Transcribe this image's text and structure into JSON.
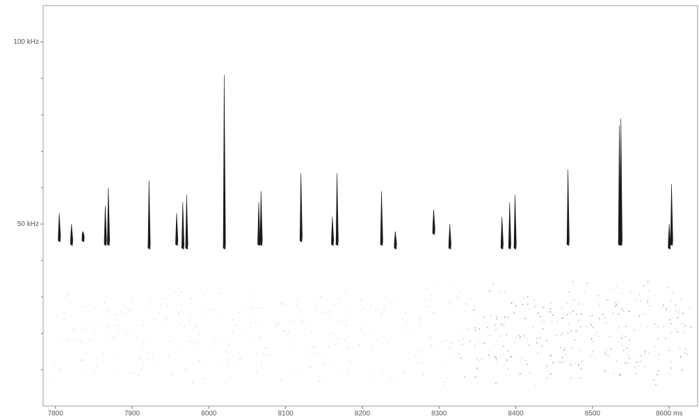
{
  "chart_data": {
    "type": "spectrogram",
    "xlim": [
      7784,
      8637
    ],
    "xticks": [
      7800,
      7900,
      8000,
      8100,
      8200,
      8300,
      8400,
      8500,
      {
        "value": 8600,
        "label": "8600 ms"
      }
    ],
    "ylim": [
      0,
      110
    ],
    "yticks": [
      {
        "value": 50,
        "label": "50 kHz"
      },
      {
        "value": 100,
        "label": "100 kHz"
      }
    ],
    "minor_yticks": [
      10,
      20,
      30,
      40,
      60,
      70,
      80,
      90
    ],
    "color": "#1a1a1a",
    "calls": {
      "x": [
        7805,
        7821,
        7836,
        7865,
        7869,
        7922,
        7958,
        7966,
        7971,
        8020,
        8065,
        8068,
        8120,
        8161,
        8167,
        8225,
        8243,
        8293,
        8314,
        8382,
        8392,
        8399,
        8468,
        8535,
        8537,
        8600,
        8603
      ],
      "low": [
        45,
        44,
        45,
        44,
        44,
        43,
        44,
        43,
        43,
        43,
        44,
        44,
        45,
        44,
        44,
        44,
        43,
        47,
        43,
        43,
        43,
        43,
        44,
        44,
        44,
        43,
        44
      ],
      "high": [
        53,
        50,
        48,
        55,
        60,
        62,
        53,
        56,
        58,
        91,
        56,
        59,
        64,
        52,
        64,
        59,
        48,
        54,
        50,
        52,
        56,
        58,
        65,
        77,
        79,
        50,
        61
      ]
    }
  }
}
